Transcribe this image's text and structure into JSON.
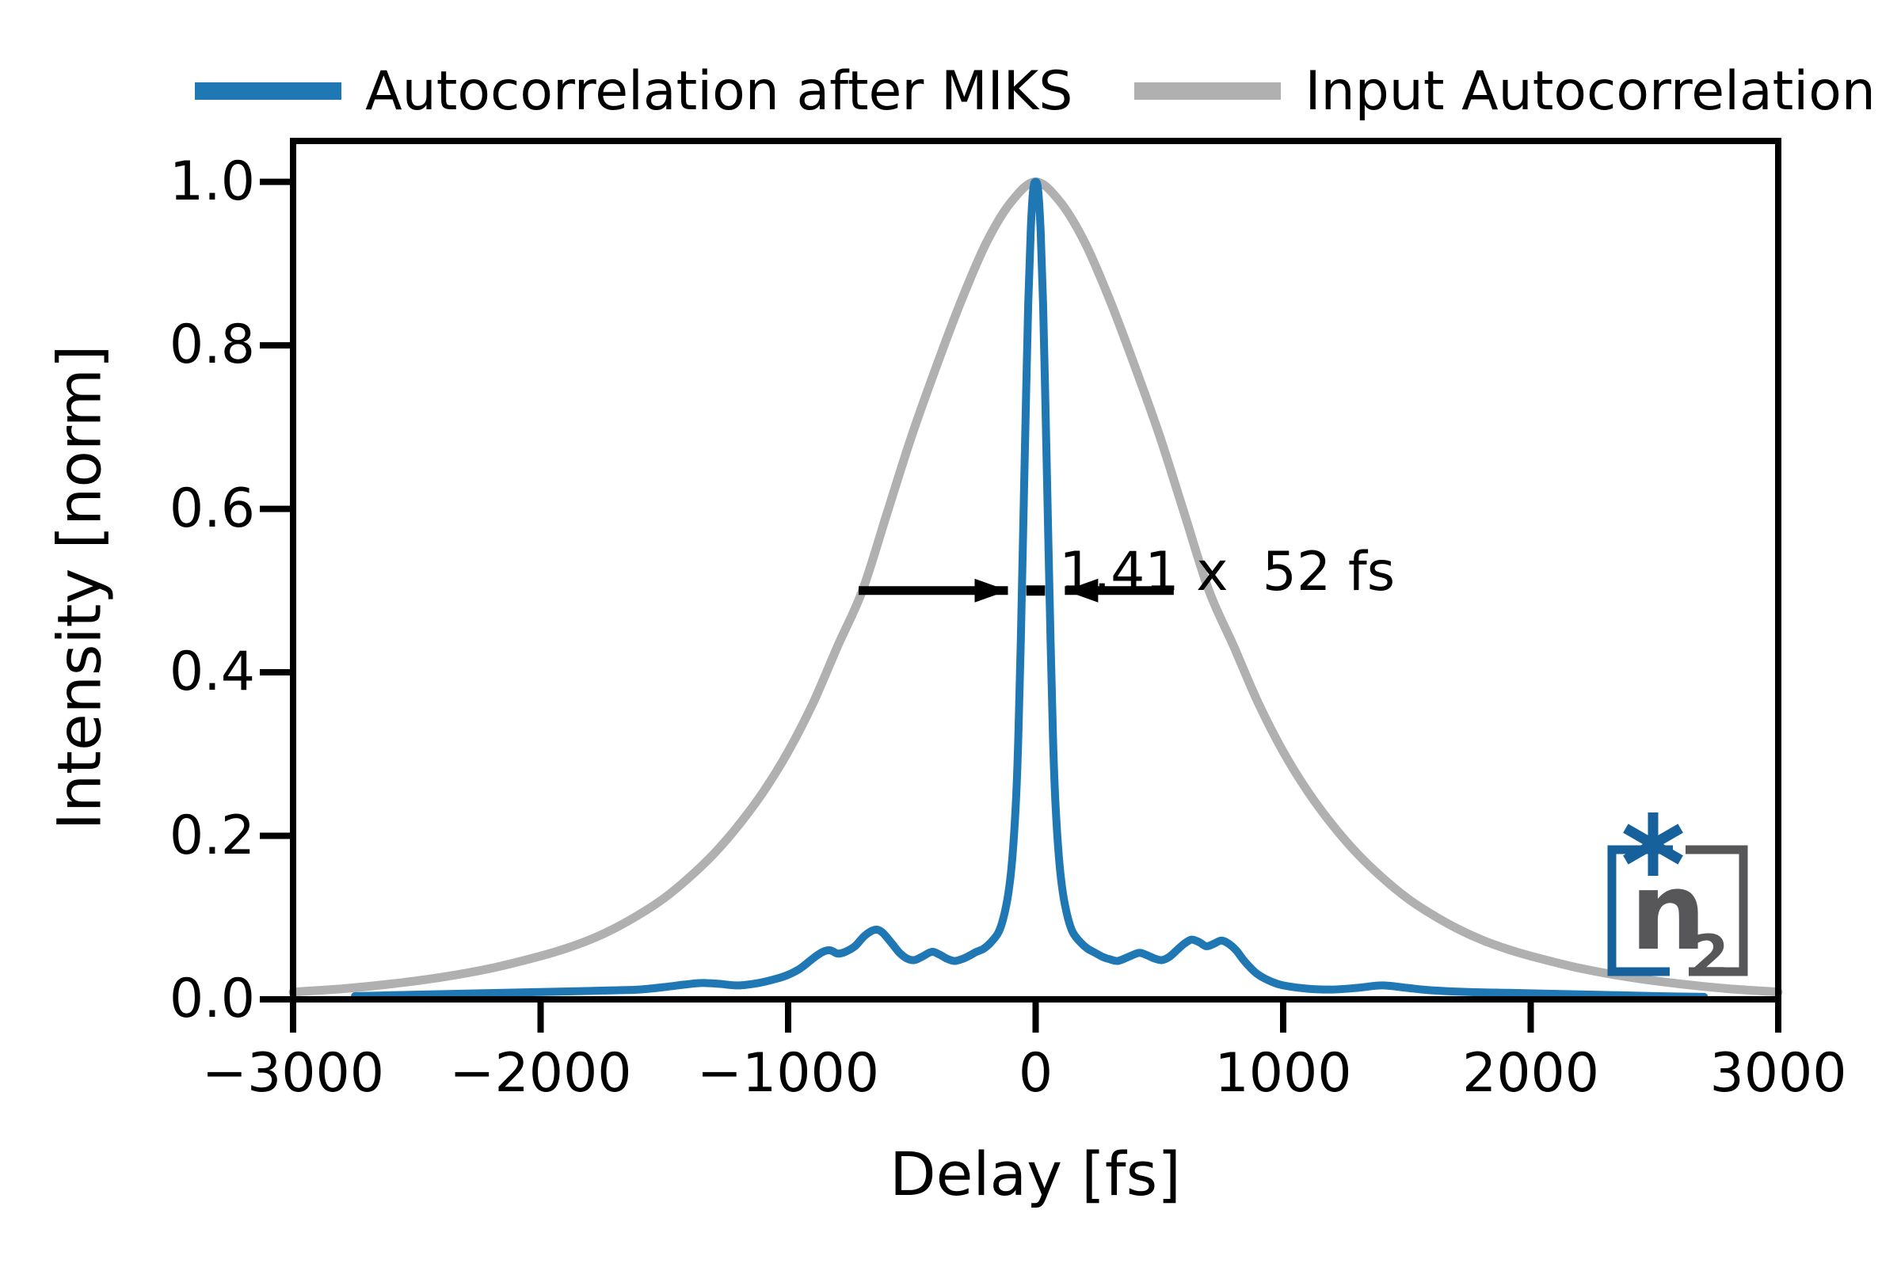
{
  "figure": {
    "legend": [
      {
        "label": "Autocorrelation after MIKS",
        "color": "#1f77b4"
      },
      {
        "label": "Input Autocorrelation",
        "color": "#b0b0b0"
      }
    ],
    "logo": {
      "symbol": "n",
      "subscript": "2",
      "asterisk_icon": "6-point-asterisk",
      "blue": "#16609c",
      "gray": "#57575a"
    },
    "colors": {
      "axes": "#000000",
      "background": "#ffffff",
      "series_blue": "#1f77b4",
      "series_gray": "#b0b0b0"
    }
  },
  "chart_data": {
    "type": "line",
    "title": "",
    "xlabel": "Delay [fs]",
    "ylabel": "Intensity [norm]",
    "xlim": [
      -3000,
      3000
    ],
    "ylim": [
      0,
      1.05
    ],
    "grid": false,
    "legend_position": "top",
    "x_ticks": [
      {
        "value": -3000,
        "label": "−3000"
      },
      {
        "value": -2000,
        "label": "−2000"
      },
      {
        "value": -1000,
        "label": "−1000"
      },
      {
        "value": 0,
        "label": "0"
      },
      {
        "value": 1000,
        "label": "1000"
      },
      {
        "value": 2000,
        "label": "2000"
      },
      {
        "value": 3000,
        "label": "3000"
      }
    ],
    "y_ticks": [
      {
        "value": 0.0,
        "label": "0.0"
      },
      {
        "value": 0.2,
        "label": "0.2"
      },
      {
        "value": 0.4,
        "label": "0.4"
      },
      {
        "value": 0.6,
        "label": "0.6"
      },
      {
        "value": 0.8,
        "label": "0.8"
      },
      {
        "value": 1.0,
        "label": "1.0"
      }
    ],
    "series": [
      {
        "name": "Input Autocorrelation",
        "color": "#b0b0b0",
        "linewidth": 11,
        "points": [
          [
            -3000,
            0.009
          ],
          [
            -2800,
            0.013
          ],
          [
            -2600,
            0.019
          ],
          [
            -2400,
            0.027
          ],
          [
            -2200,
            0.038
          ],
          [
            -2000,
            0.053
          ],
          [
            -1900,
            0.062
          ],
          [
            -1800,
            0.073
          ],
          [
            -1700,
            0.087
          ],
          [
            -1600,
            0.104
          ],
          [
            -1500,
            0.124
          ],
          [
            -1400,
            0.149
          ],
          [
            -1300,
            0.178
          ],
          [
            -1200,
            0.213
          ],
          [
            -1100,
            0.254
          ],
          [
            -1000,
            0.303
          ],
          [
            -900,
            0.362
          ],
          [
            -800,
            0.432
          ],
          [
            -700,
            0.5
          ],
          [
            -600,
            0.595
          ],
          [
            -500,
            0.69
          ],
          [
            -400,
            0.775
          ],
          [
            -300,
            0.855
          ],
          [
            -200,
            0.925
          ],
          [
            -100,
            0.975
          ],
          [
            0,
            1.0
          ],
          [
            100,
            0.975
          ],
          [
            200,
            0.925
          ],
          [
            300,
            0.855
          ],
          [
            400,
            0.775
          ],
          [
            500,
            0.69
          ],
          [
            600,
            0.595
          ],
          [
            700,
            0.5
          ],
          [
            800,
            0.432
          ],
          [
            900,
            0.362
          ],
          [
            1000,
            0.303
          ],
          [
            1100,
            0.254
          ],
          [
            1200,
            0.213
          ],
          [
            1300,
            0.178
          ],
          [
            1400,
            0.149
          ],
          [
            1500,
            0.124
          ],
          [
            1600,
            0.104
          ],
          [
            1700,
            0.087
          ],
          [
            1800,
            0.073
          ],
          [
            1900,
            0.062
          ],
          [
            2000,
            0.053
          ],
          [
            2200,
            0.038
          ],
          [
            2400,
            0.027
          ],
          [
            2600,
            0.019
          ],
          [
            2800,
            0.013
          ],
          [
            3000,
            0.009
          ]
        ]
      },
      {
        "name": "Autocorrelation after MIKS",
        "color": "#1f77b4",
        "linewidth": 10,
        "points": [
          [
            -2750,
            0.004
          ],
          [
            -2600,
            0.005
          ],
          [
            -2450,
            0.006
          ],
          [
            -2300,
            0.007
          ],
          [
            -2150,
            0.008
          ],
          [
            -2000,
            0.009
          ],
          [
            -1850,
            0.01
          ],
          [
            -1700,
            0.011
          ],
          [
            -1600,
            0.012
          ],
          [
            -1500,
            0.015
          ],
          [
            -1420,
            0.018
          ],
          [
            -1350,
            0.02
          ],
          [
            -1280,
            0.019
          ],
          [
            -1200,
            0.017
          ],
          [
            -1120,
            0.02
          ],
          [
            -1050,
            0.025
          ],
          [
            -1000,
            0.03
          ],
          [
            -950,
            0.038
          ],
          [
            -900,
            0.05
          ],
          [
            -860,
            0.058
          ],
          [
            -830,
            0.06
          ],
          [
            -800,
            0.056
          ],
          [
            -770,
            0.058
          ],
          [
            -730,
            0.065
          ],
          [
            -690,
            0.078
          ],
          [
            -650,
            0.085
          ],
          [
            -620,
            0.082
          ],
          [
            -580,
            0.068
          ],
          [
            -550,
            0.057
          ],
          [
            -520,
            0.05
          ],
          [
            -490,
            0.048
          ],
          [
            -460,
            0.052
          ],
          [
            -420,
            0.058
          ],
          [
            -390,
            0.055
          ],
          [
            -360,
            0.05
          ],
          [
            -330,
            0.047
          ],
          [
            -300,
            0.049
          ],
          [
            -270,
            0.053
          ],
          [
            -240,
            0.058
          ],
          [
            -210,
            0.062
          ],
          [
            -180,
            0.07
          ],
          [
            -150,
            0.082
          ],
          [
            -130,
            0.1
          ],
          [
            -110,
            0.13
          ],
          [
            -95,
            0.17
          ],
          [
            -80,
            0.24
          ],
          [
            -70,
            0.32
          ],
          [
            -60,
            0.44
          ],
          [
            -50,
            0.58
          ],
          [
            -40,
            0.72
          ],
          [
            -30,
            0.85
          ],
          [
            -20,
            0.94
          ],
          [
            -10,
            0.99
          ],
          [
            0,
            1.0
          ],
          [
            10,
            0.99
          ],
          [
            20,
            0.94
          ],
          [
            30,
            0.85
          ],
          [
            40,
            0.72
          ],
          [
            50,
            0.58
          ],
          [
            60,
            0.44
          ],
          [
            70,
            0.32
          ],
          [
            80,
            0.24
          ],
          [
            95,
            0.17
          ],
          [
            110,
            0.13
          ],
          [
            130,
            0.1
          ],
          [
            150,
            0.082
          ],
          [
            180,
            0.07
          ],
          [
            210,
            0.062
          ],
          [
            240,
            0.057
          ],
          [
            270,
            0.052
          ],
          [
            300,
            0.049
          ],
          [
            330,
            0.047
          ],
          [
            360,
            0.05
          ],
          [
            390,
            0.054
          ],
          [
            420,
            0.057
          ],
          [
            450,
            0.054
          ],
          [
            480,
            0.05
          ],
          [
            510,
            0.048
          ],
          [
            540,
            0.052
          ],
          [
            570,
            0.06
          ],
          [
            600,
            0.068
          ],
          [
            630,
            0.073
          ],
          [
            660,
            0.07
          ],
          [
            690,
            0.065
          ],
          [
            720,
            0.068
          ],
          [
            750,
            0.072
          ],
          [
            780,
            0.068
          ],
          [
            810,
            0.06
          ],
          [
            840,
            0.048
          ],
          [
            870,
            0.038
          ],
          [
            900,
            0.03
          ],
          [
            950,
            0.022
          ],
          [
            1000,
            0.017
          ],
          [
            1100,
            0.013
          ],
          [
            1200,
            0.012
          ],
          [
            1300,
            0.014
          ],
          [
            1400,
            0.017
          ],
          [
            1500,
            0.014
          ],
          [
            1600,
            0.011
          ],
          [
            1750,
            0.009
          ],
          [
            1900,
            0.008
          ],
          [
            2050,
            0.007
          ],
          [
            2200,
            0.006
          ],
          [
            2350,
            0.005
          ],
          [
            2500,
            0.004
          ],
          [
            2700,
            0.003
          ]
        ]
      }
    ],
    "annotations": {
      "fwhm_text": "1.41 x  52 fs",
      "fwhm_text_xy": [
        95,
        0.56
      ],
      "arrows": [
        {
          "from": [
            -715,
            0.5
          ],
          "to": [
            -112,
            0.5
          ]
        },
        {
          "from": [
            558,
            0.5
          ],
          "to": [
            118,
            0.5
          ]
        }
      ],
      "fwhm_bar": {
        "x1": -38,
        "x2": 38,
        "y": 0.5
      }
    }
  }
}
